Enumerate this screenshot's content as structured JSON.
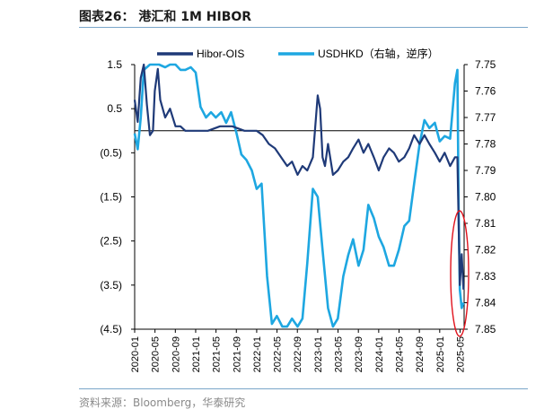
{
  "title": "图表26：  港汇和 1M HIBOR",
  "source": "资料来源：Bloomberg，华泰研究",
  "colors": {
    "hibor": "#1f3a78",
    "usdhkd": "#1ea7e1",
    "highlight": "#e0121c",
    "axis": "#000000",
    "rule": "#7aa6c9"
  },
  "chart_data": {
    "type": "line",
    "title": "港汇和 1M HIBOR",
    "legend_position": "top",
    "x_ticks": [
      "2020-01",
      "2020-05",
      "2020-09",
      "2021-01",
      "2021-05",
      "2021-09",
      "2022-01",
      "2022-05",
      "2022-09",
      "2023-01",
      "2023-05",
      "2023-09",
      "2024-01",
      "2024-05",
      "2024-09",
      "2025-01",
      "2025-05"
    ],
    "left_axis": {
      "range": [
        -4.5,
        1.5
      ],
      "ticks": [
        1.5,
        0.5,
        -0.5,
        -1.5,
        -2.5,
        -3.5,
        -4.5
      ],
      "tick_labels": [
        "1.5",
        "0.5",
        "(0.5)",
        "(1.5)",
        "(2.5)",
        "(3.5)",
        "(4.5)"
      ]
    },
    "right_axis": {
      "range": [
        7.75,
        7.85
      ],
      "inverted": true,
      "ticks": [
        7.75,
        7.76,
        7.77,
        7.78,
        7.79,
        7.8,
        7.81,
        7.82,
        7.83,
        7.84,
        7.85
      ],
      "tick_labels": [
        "7.75",
        "7.76",
        "7.77",
        "7.78",
        "7.79",
        "7.80",
        "7.81",
        "7.82",
        "7.83",
        "7.84",
        "7.85"
      ]
    },
    "series": [
      {
        "name": "Hibor-OIS",
        "axis": "left",
        "color": "#1f3a78",
        "points": [
          [
            2020.0,
            0.7
          ],
          [
            2020.05,
            0.2
          ],
          [
            2020.1,
            1.2
          ],
          [
            2020.15,
            1.5
          ],
          [
            2020.2,
            0.6
          ],
          [
            2020.25,
            -0.1
          ],
          [
            2020.3,
            0.0
          ],
          [
            2020.33,
            0.9
          ],
          [
            2020.38,
            1.4
          ],
          [
            2020.42,
            0.7
          ],
          [
            2020.5,
            0.3
          ],
          [
            2020.58,
            0.5
          ],
          [
            2020.67,
            0.1
          ],
          [
            2020.75,
            0.1
          ],
          [
            2020.83,
            0.0
          ],
          [
            2021.0,
            0.0
          ],
          [
            2021.2,
            0.0
          ],
          [
            2021.4,
            0.1
          ],
          [
            2021.6,
            0.1
          ],
          [
            2021.8,
            0.0
          ],
          [
            2022.0,
            0.0
          ],
          [
            2022.1,
            -0.1
          ],
          [
            2022.2,
            -0.3
          ],
          [
            2022.3,
            -0.4
          ],
          [
            2022.4,
            -0.6
          ],
          [
            2022.5,
            -0.8
          ],
          [
            2022.58,
            -0.7
          ],
          [
            2022.67,
            -1.0
          ],
          [
            2022.75,
            -0.8
          ],
          [
            2022.83,
            -0.9
          ],
          [
            2022.92,
            -0.6
          ],
          [
            2023.0,
            0.8
          ],
          [
            2023.04,
            0.5
          ],
          [
            2023.08,
            -0.6
          ],
          [
            2023.12,
            -0.8
          ],
          [
            2023.17,
            -0.3
          ],
          [
            2023.25,
            -1.0
          ],
          [
            2023.33,
            -0.9
          ],
          [
            2023.42,
            -0.7
          ],
          [
            2023.5,
            -0.6
          ],
          [
            2023.58,
            -0.4
          ],
          [
            2023.67,
            -0.2
          ],
          [
            2023.75,
            -0.5
          ],
          [
            2023.83,
            -0.3
          ],
          [
            2023.92,
            -0.6
          ],
          [
            2024.0,
            -0.9
          ],
          [
            2024.08,
            -0.6
          ],
          [
            2024.17,
            -0.4
          ],
          [
            2024.25,
            -0.5
          ],
          [
            2024.33,
            -0.7
          ],
          [
            2024.42,
            -0.6
          ],
          [
            2024.5,
            -0.4
          ],
          [
            2024.58,
            -0.1
          ],
          [
            2024.67,
            -0.3
          ],
          [
            2024.75,
            -0.1
          ],
          [
            2024.83,
            -0.3
          ],
          [
            2024.92,
            -0.5
          ],
          [
            2025.0,
            -0.7
          ],
          [
            2025.08,
            -0.5
          ],
          [
            2025.17,
            -0.8
          ],
          [
            2025.25,
            -0.6
          ],
          [
            2025.29,
            -0.6
          ],
          [
            2025.31,
            -2.1
          ],
          [
            2025.33,
            -3.5
          ],
          [
            2025.36,
            -2.8
          ],
          [
            2025.39,
            -3.6
          ]
        ]
      },
      {
        "name": "USDHKD（右轴，逆序）",
        "axis": "right",
        "color": "#1ea7e1",
        "points": [
          [
            2020.0,
            7.776
          ],
          [
            2020.05,
            7.782
          ],
          [
            2020.1,
            7.77
          ],
          [
            2020.15,
            7.752
          ],
          [
            2020.25,
            7.75
          ],
          [
            2020.4,
            7.75
          ],
          [
            2020.5,
            7.751
          ],
          [
            2020.58,
            7.75
          ],
          [
            2020.67,
            7.75
          ],
          [
            2020.75,
            7.752
          ],
          [
            2020.83,
            7.752
          ],
          [
            2020.92,
            7.751
          ],
          [
            2021.0,
            7.753
          ],
          [
            2021.08,
            7.766
          ],
          [
            2021.17,
            7.77
          ],
          [
            2021.25,
            7.768
          ],
          [
            2021.33,
            7.77
          ],
          [
            2021.42,
            7.768
          ],
          [
            2021.5,
            7.772
          ],
          [
            2021.58,
            7.768
          ],
          [
            2021.67,
            7.776
          ],
          [
            2021.75,
            7.784
          ],
          [
            2021.83,
            7.786
          ],
          [
            2021.92,
            7.79
          ],
          [
            2022.0,
            7.797
          ],
          [
            2022.08,
            7.795
          ],
          [
            2022.17,
            7.83
          ],
          [
            2022.25,
            7.848
          ],
          [
            2022.33,
            7.845
          ],
          [
            2022.42,
            7.849
          ],
          [
            2022.5,
            7.849
          ],
          [
            2022.58,
            7.846
          ],
          [
            2022.67,
            7.849
          ],
          [
            2022.75,
            7.846
          ],
          [
            2022.83,
            7.825
          ],
          [
            2022.92,
            7.797
          ],
          [
            2023.0,
            7.8
          ],
          [
            2023.08,
            7.82
          ],
          [
            2023.17,
            7.842
          ],
          [
            2023.25,
            7.849
          ],
          [
            2023.33,
            7.846
          ],
          [
            2023.42,
            7.83
          ],
          [
            2023.5,
            7.822
          ],
          [
            2023.58,
            7.816
          ],
          [
            2023.67,
            7.826
          ],
          [
            2023.75,
            7.82
          ],
          [
            2023.83,
            7.803
          ],
          [
            2023.92,
            7.808
          ],
          [
            2024.0,
            7.815
          ],
          [
            2024.08,
            7.819
          ],
          [
            2024.17,
            7.826
          ],
          [
            2024.25,
            7.826
          ],
          [
            2024.33,
            7.82
          ],
          [
            2024.42,
            7.811
          ],
          [
            2024.5,
            7.809
          ],
          [
            2024.58,
            7.795
          ],
          [
            2024.67,
            7.78
          ],
          [
            2024.75,
            7.771
          ],
          [
            2024.83,
            7.774
          ],
          [
            2024.92,
            7.772
          ],
          [
            2025.0,
            7.779
          ],
          [
            2025.08,
            7.777
          ],
          [
            2025.17,
            7.778
          ],
          [
            2025.25,
            7.757
          ],
          [
            2025.29,
            7.752
          ],
          [
            2025.31,
            7.805
          ],
          [
            2025.33,
            7.835
          ],
          [
            2025.36,
            7.842
          ],
          [
            2025.39,
            7.84
          ]
        ]
      }
    ]
  }
}
